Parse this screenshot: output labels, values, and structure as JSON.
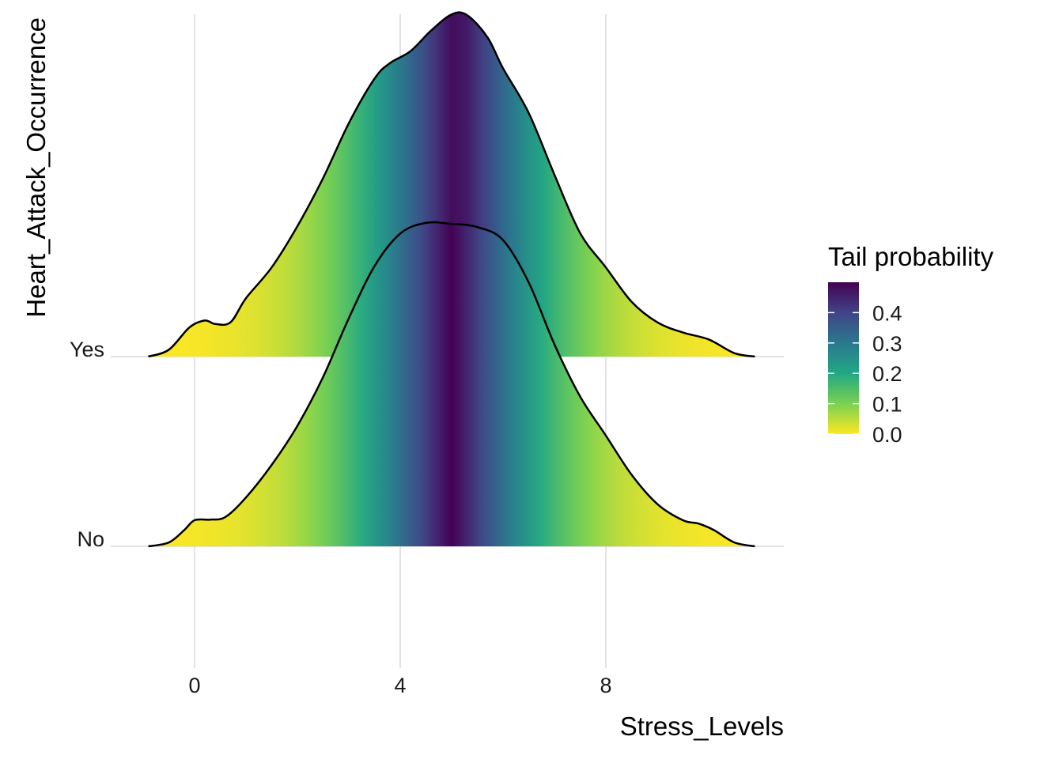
{
  "chart_data": {
    "type": "ridgeline",
    "title": "",
    "xlabel": "Stress_Levels",
    "ylabel": "Heart_Attack_Occurrence",
    "xlim": [
      -2.2,
      11.4
    ],
    "x_ticks": [
      0,
      4,
      8
    ],
    "grid": "on",
    "categories": [
      "No",
      "Yes"
    ],
    "fill_scale": {
      "name": "Tail probability",
      "palette": "viridis (reversed)",
      "min": 0.0,
      "max": 0.5,
      "ticks": [
        0.0,
        0.1,
        0.2,
        0.3,
        0.4
      ],
      "colors": [
        "#FDE725",
        "#7AD151",
        "#22A884",
        "#2A788E",
        "#414487",
        "#440154"
      ]
    },
    "series": [
      {
        "name": "No",
        "center": 5.0,
        "x": [
          -0.9,
          -0.5,
          -0.2,
          0.0,
          0.3,
          0.6,
          1.0,
          1.5,
          2.0,
          2.5,
          3.0,
          3.5,
          4.0,
          4.5,
          5.0,
          5.5,
          6.0,
          6.5,
          7.0,
          7.5,
          8.0,
          8.5,
          9.0,
          9.5,
          9.8,
          10.1,
          10.5,
          10.9
        ],
        "density": [
          0.0,
          0.012,
          0.05,
          0.08,
          0.082,
          0.09,
          0.15,
          0.25,
          0.37,
          0.52,
          0.7,
          0.86,
          0.96,
          0.993,
          0.99,
          0.98,
          0.94,
          0.81,
          0.62,
          0.46,
          0.34,
          0.22,
          0.13,
          0.08,
          0.07,
          0.05,
          0.012,
          0.0
        ]
      },
      {
        "name": "Yes",
        "center": 5.1,
        "x": [
          -0.9,
          -0.5,
          -0.1,
          0.2,
          0.4,
          0.7,
          1.0,
          1.5,
          2.0,
          2.5,
          3.0,
          3.5,
          3.8,
          4.2,
          4.6,
          5.0,
          5.3,
          5.7,
          6.0,
          6.5,
          7.0,
          7.5,
          8.0,
          8.5,
          9.0,
          9.5,
          10.0,
          10.5,
          10.9
        ],
        "density": [
          0.0,
          0.02,
          0.085,
          0.105,
          0.095,
          0.1,
          0.17,
          0.26,
          0.38,
          0.52,
          0.68,
          0.81,
          0.855,
          0.89,
          0.95,
          0.997,
          0.995,
          0.93,
          0.84,
          0.71,
          0.53,
          0.36,
          0.26,
          0.16,
          0.1,
          0.07,
          0.05,
          0.01,
          0.0
        ]
      }
    ]
  }
}
